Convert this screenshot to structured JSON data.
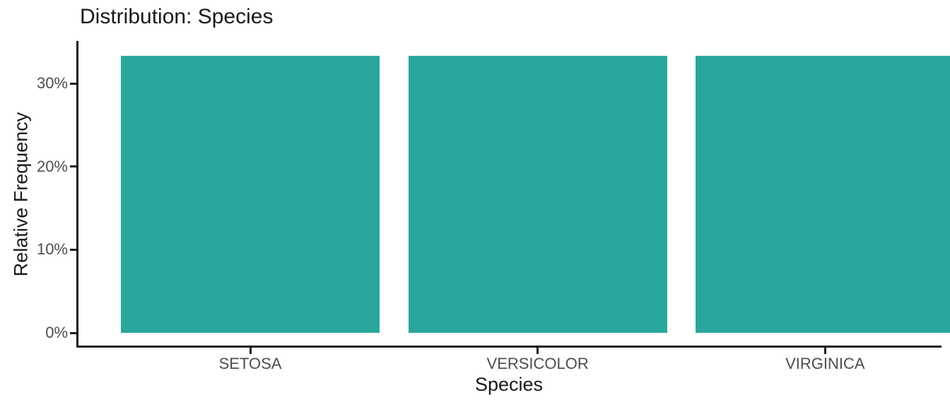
{
  "chart_data": {
    "type": "bar",
    "title": "Distribution: Species",
    "xlabel": "Species",
    "ylabel": "Relative Frequency",
    "categories": [
      "SETOSA",
      "VERSICOLOR",
      "VIRGINICA"
    ],
    "values": [
      33.33,
      33.33,
      33.33
    ],
    "value_unit": "percent",
    "y_ticks": [
      {
        "value": 0,
        "label": "0%"
      },
      {
        "value": 10,
        "label": "10%"
      },
      {
        "value": 20,
        "label": "20%"
      },
      {
        "value": 30,
        "label": "30%"
      }
    ],
    "ylim": [
      0,
      35
    ],
    "grid": false,
    "legend": "none",
    "bar_color": "#2aa79d",
    "axis_color": "#1a1a1a",
    "tick_label_color": "#4d4d4d"
  }
}
